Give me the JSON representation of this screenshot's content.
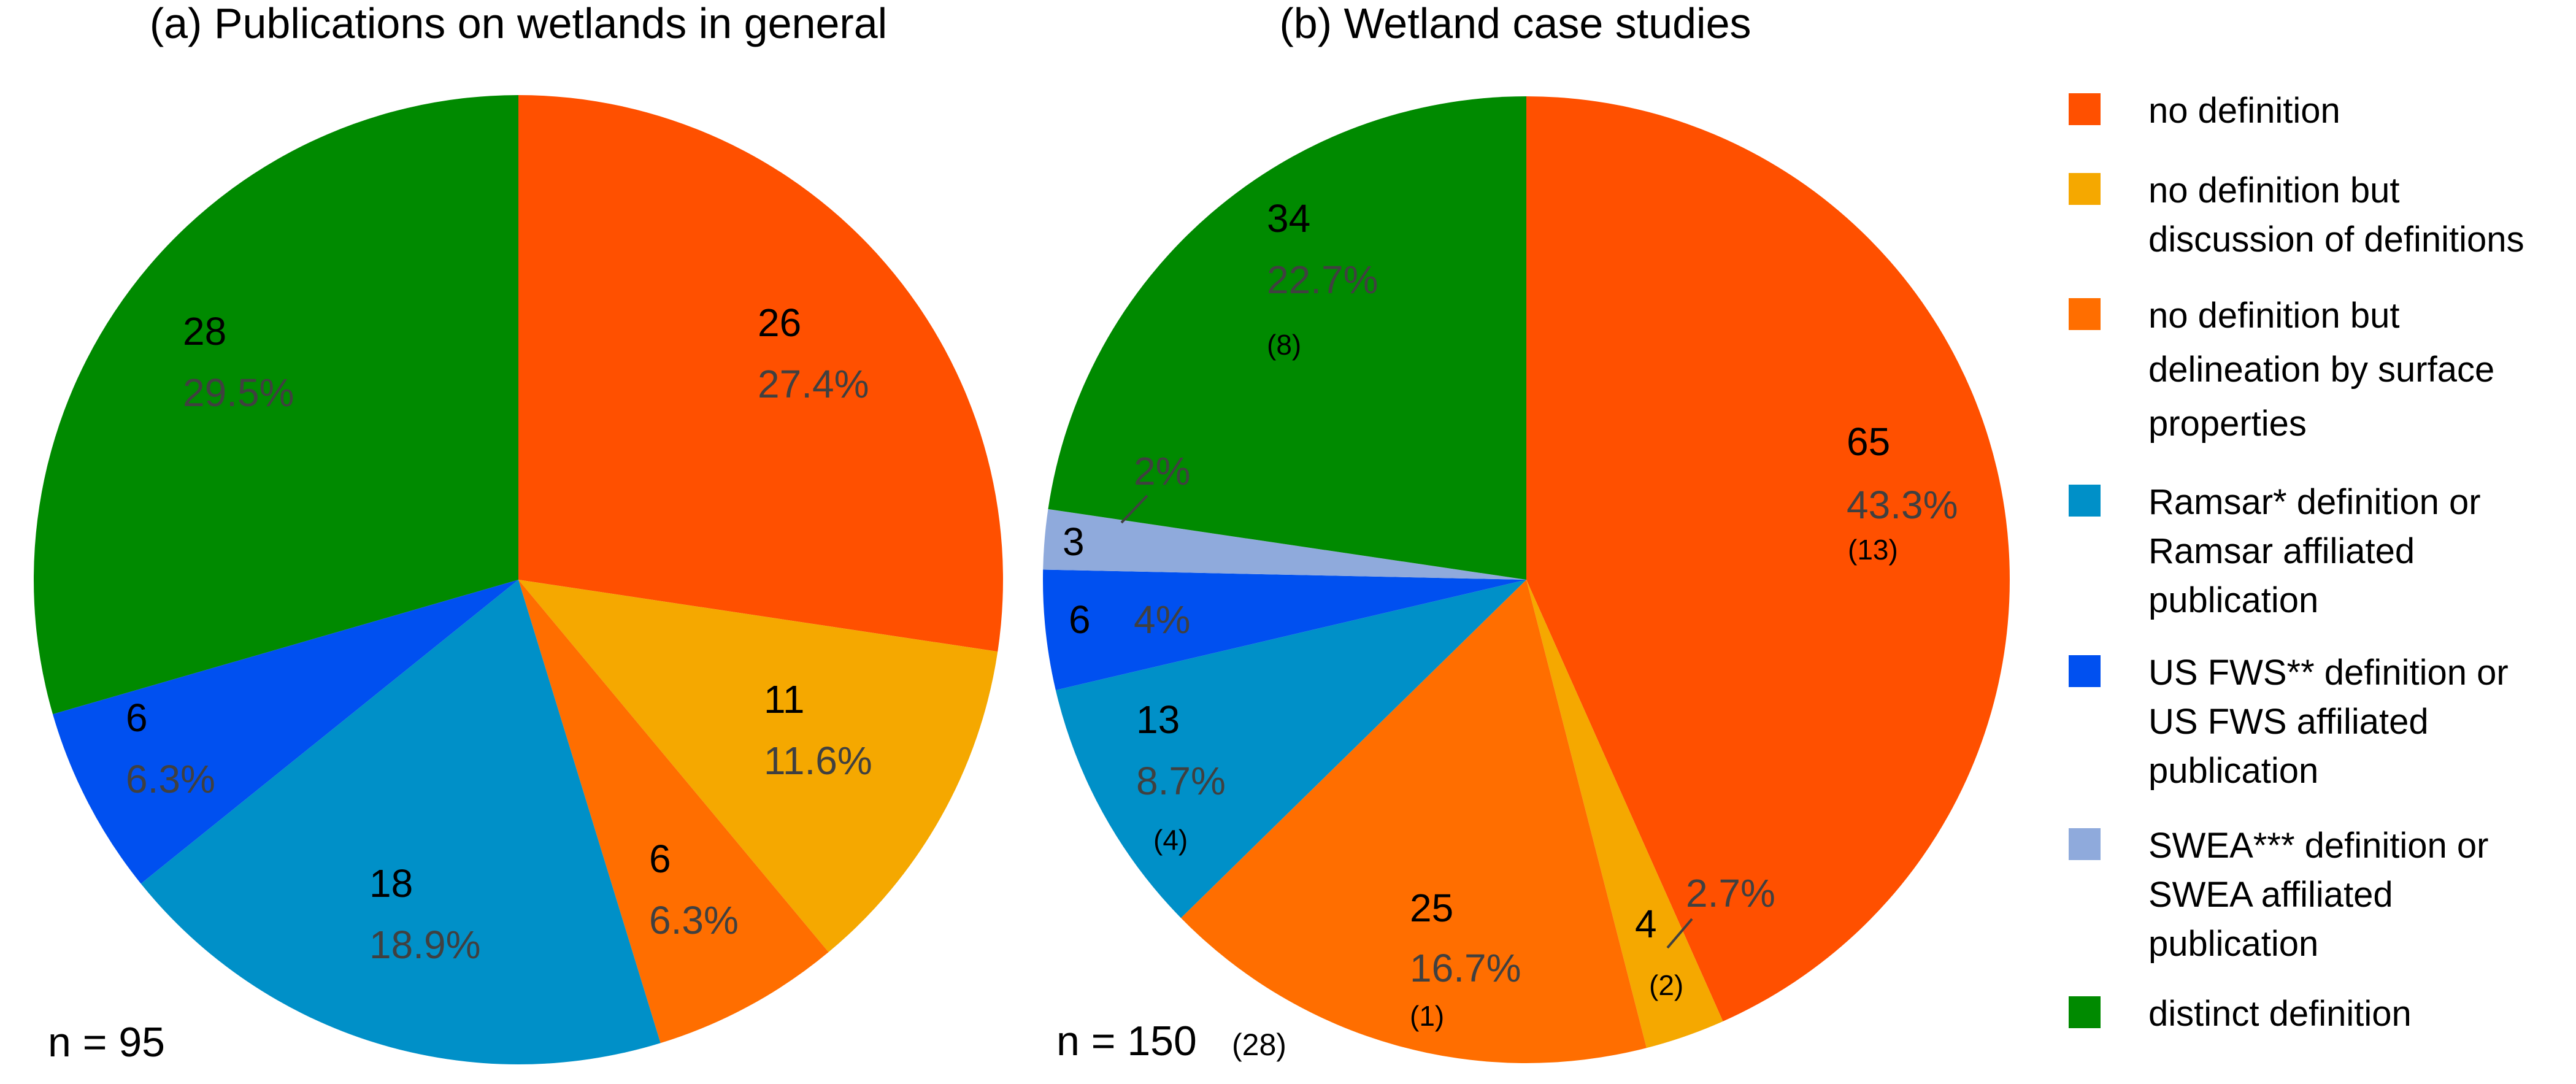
{
  "colors": {
    "no_definition": "#FF5000",
    "no_def_discussion": "#F5A800",
    "no_def_delineation": "#FF6E00",
    "ramsar": "#0090C8",
    "usfws": "#0050F0",
    "swea": "#8FAADC",
    "distinct": "#008A00"
  },
  "legend": [
    {
      "key": "no_definition",
      "lines": [
        "no definition"
      ]
    },
    {
      "key": "no_def_discussion",
      "lines": [
        "no definition but",
        "discussion of definitions"
      ]
    },
    {
      "key": "no_def_delineation",
      "lines": [
        "no definition but",
        "delineation by surface",
        "properties"
      ]
    },
    {
      "key": "ramsar",
      "lines": [
        "Ramsar* definition or",
        "Ramsar affiliated",
        "publication"
      ]
    },
    {
      "key": "usfws",
      "lines": [
        "US FWS** definition or",
        "US FWS affiliated",
        "publication"
      ]
    },
    {
      "key": "swea",
      "lines": [
        "SWEA*** definition or",
        "SWEA affiliated",
        "publication"
      ]
    },
    {
      "key": "distinct",
      "lines": [
        "distinct definition"
      ]
    }
  ],
  "chart_data": [
    {
      "type": "pie",
      "title": "(a)  Publications on wetlands in general",
      "n_label": "n = 95",
      "n_sub": "",
      "slices": [
        {
          "key": "no_definition",
          "count": 26,
          "count_label": "26",
          "pct_label": "27.4%",
          "sub_label": ""
        },
        {
          "key": "no_def_discussion",
          "count": 11,
          "count_label": "11",
          "pct_label": "11.6%",
          "sub_label": ""
        },
        {
          "key": "no_def_delineation",
          "count": 6,
          "count_label": "6",
          "pct_label": "6.3%",
          "sub_label": ""
        },
        {
          "key": "ramsar",
          "count": 18,
          "count_label": "18",
          "pct_label": "18.9%",
          "sub_label": ""
        },
        {
          "key": "usfws",
          "count": 6,
          "count_label": "6",
          "pct_label": "6.3%",
          "sub_label": ""
        },
        {
          "key": "swea",
          "count": 0,
          "count_label": "",
          "pct_label": "",
          "sub_label": ""
        },
        {
          "key": "distinct",
          "count": 28,
          "count_label": "28",
          "pct_label": "29.5%",
          "sub_label": ""
        }
      ]
    },
    {
      "type": "pie",
      "title": "(b)  Wetland case studies",
      "n_label": "n = 150",
      "n_sub": "(28)",
      "slices": [
        {
          "key": "no_definition",
          "count": 65,
          "count_label": "65",
          "pct_label": "43.3%",
          "sub_label": "(13)"
        },
        {
          "key": "no_def_discussion",
          "count": 4,
          "count_label": "4",
          "pct_label": "2.7%",
          "sub_label": "(2)"
        },
        {
          "key": "no_def_delineation",
          "count": 25,
          "count_label": "25",
          "pct_label": "16.7%",
          "sub_label": "(1)"
        },
        {
          "key": "ramsar",
          "count": 13,
          "count_label": "13",
          "pct_label": "8.7%",
          "sub_label": "(4)"
        },
        {
          "key": "usfws",
          "count": 6,
          "count_label": "6",
          "pct_label": "4%",
          "sub_label": ""
        },
        {
          "key": "swea",
          "count": 3,
          "count_label": "3",
          "pct_label": "2%",
          "sub_label": ""
        },
        {
          "key": "distinct",
          "count": 34,
          "count_label": "34",
          "pct_label": "22.7%",
          "sub_label": "(8)"
        }
      ]
    }
  ]
}
